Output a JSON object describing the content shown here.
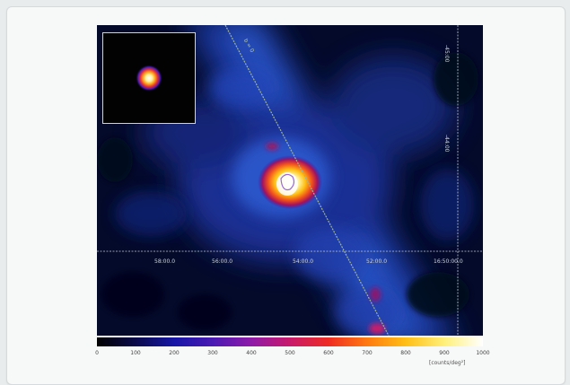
{
  "figure": {
    "ra_labels": [
      "58:00.0",
      "56:00.0",
      "54:00.0",
      "52:00.0",
      "16:50:00.0"
    ],
    "dec_labels": [
      "-45:00",
      "-44:00"
    ],
    "line_label": "b = 0",
    "colorbar": {
      "ticks": [
        "0",
        "100",
        "200",
        "300",
        "400",
        "500",
        "600",
        "700",
        "800",
        "900",
        "1000"
      ],
      "unit": "[counts/deg²]"
    }
  }
}
